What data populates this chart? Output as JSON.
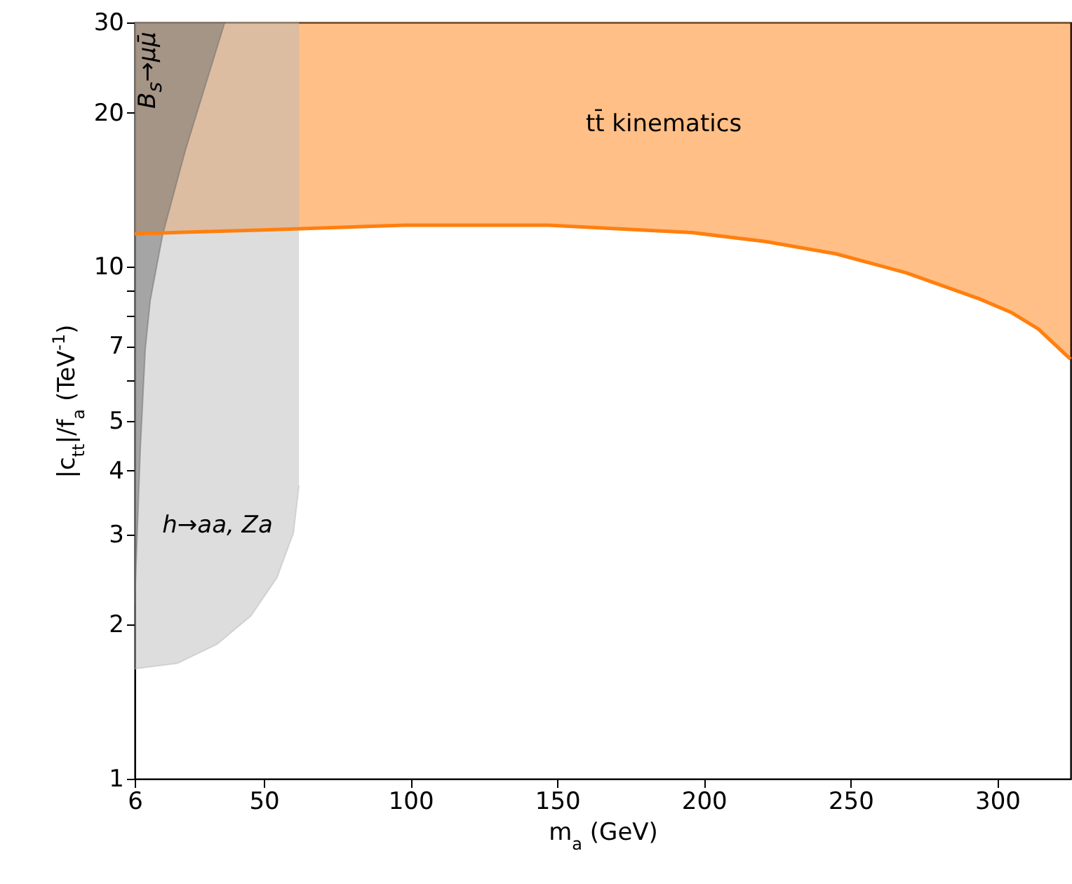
{
  "chart_data": {
    "type": "line",
    "xlabel": "m$_{a}$ (GeV)",
    "ylabel": "|c$_{tt}$|/f$_{a}$ (TeV$^{-1}$)",
    "log": "y",
    "xlim": [
      6,
      325
    ],
    "xticks": [
      6,
      50,
      100,
      150,
      200,
      250,
      300
    ],
    "ylim": [
      1,
      30
    ],
    "yticks": [
      1,
      2,
      3,
      4,
      5,
      {
        "value": 6,
        "label": null
      },
      7,
      {
        "value": 8,
        "label": null
      },
      {
        "value": 9,
        "label": null
      },
      10,
      20,
      30
    ],
    "series": [
      {
        "color": "#ff7f0e",
        "x": [
          6,
          50,
          98,
          147,
          196,
          221,
          245,
          269,
          294,
          305,
          314,
          323.5,
          325
        ],
        "values": [
          11.6,
          11.8,
          12.05,
          12.05,
          11.66,
          11.2,
          10.6,
          9.73,
          8.65,
          8.13,
          7.56,
          6.72,
          6.6
        ],
        "lower": [
          11.6,
          11.8,
          12.05,
          12.05,
          11.66,
          11.2,
          10.6,
          9.73,
          8.65,
          8.13,
          7.56,
          6.72,
          6.6
        ],
        "upper": [
          30,
          30,
          30,
          30,
          30,
          30,
          30,
          30,
          30,
          30,
          30,
          30,
          30
        ]
      },
      {
        "color": "#bcbcbc",
        "x": [
          6,
          20.5,
          34,
          45.6,
          54.5,
          60.1,
          62
        ],
        "values": [
          1.64,
          1.68,
          1.83,
          2.08,
          2.47,
          3.02,
          3.74
        ],
        "lower": [
          1.64,
          1.68,
          1.83,
          2.08,
          2.47,
          3.02,
          3.74
        ],
        "upper": [
          30,
          30,
          30,
          30,
          30,
          30,
          30
        ]
      },
      {
        "color": "#6e6e6e",
        "x": [
          6,
          7.9,
          9.6,
          11.3,
          15.6,
          23.3,
          36.7
        ],
        "values": [
          2.2,
          4.4,
          6.9,
          8.6,
          11.6,
          16.9,
          30
        ],
        "lower": [
          2.2,
          4.4,
          6.9,
          8.6,
          11.6,
          16.9,
          30
        ],
        "upper": [
          30,
          30,
          30,
          30,
          30,
          30,
          30
        ]
      }
    ],
    "annotations": [
      "tt̄ kinematics",
      "B$_{s}$→μμ̄",
      "h→aa, Za"
    ]
  }
}
